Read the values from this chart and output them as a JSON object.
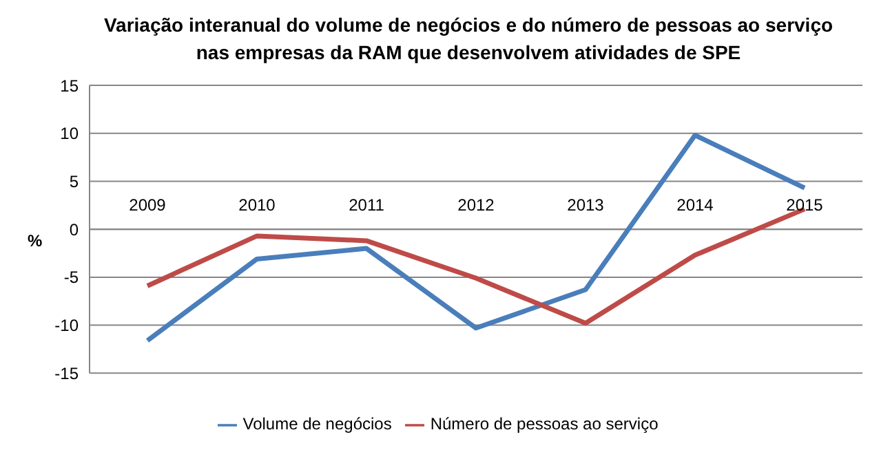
{
  "chart_data": {
    "type": "line",
    "title": "Variação interanual do volume de negócios e do número de pessoas ao serviço nas empresas da RAM que desenvolvem atividades de SPE",
    "ylabel": "%",
    "categories": [
      "2009",
      "2010",
      "2011",
      "2012",
      "2013",
      "2014",
      "2015"
    ],
    "series": [
      {
        "name": "Volume de negócios",
        "color": "#4a7ebb",
        "values": [
          -11.6,
          -3.1,
          -2.0,
          -10.3,
          -6.3,
          9.8,
          4.3
        ]
      },
      {
        "name": "Número de pessoas ao serviço",
        "color": "#be4b48",
        "values": [
          -5.9,
          -0.7,
          -1.2,
          -5.1,
          -9.8,
          -2.7,
          2.1
        ]
      }
    ],
    "ylim": [
      -15,
      15
    ],
    "yticks": [
      -15,
      -10,
      -5,
      0,
      5,
      10,
      15
    ],
    "grid": "y",
    "legend": "bottom",
    "marker": "none",
    "line_style": "solid"
  }
}
